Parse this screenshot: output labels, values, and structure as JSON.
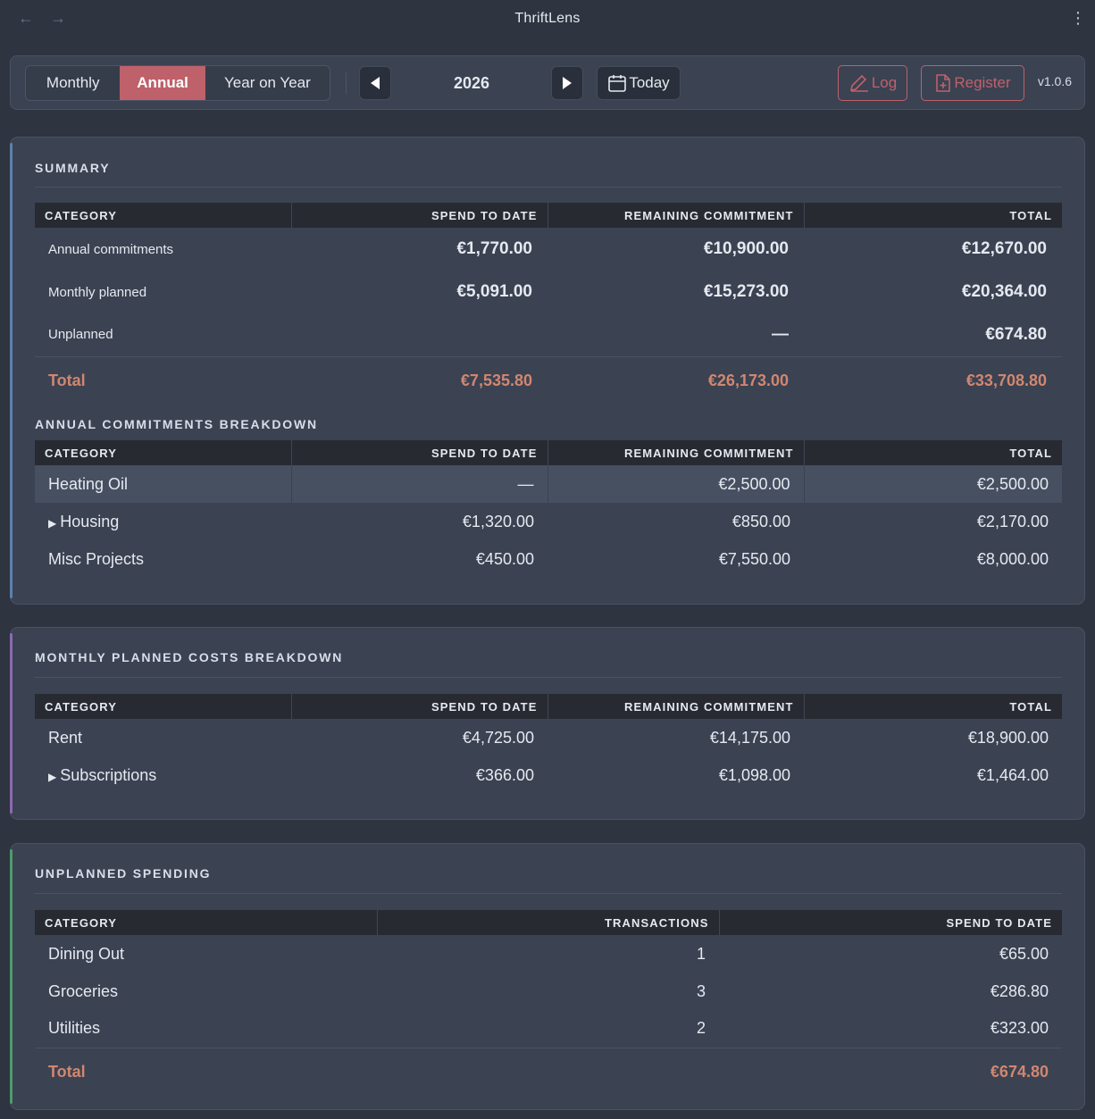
{
  "app": {
    "title": "ThriftLens",
    "version": "v1.0.6"
  },
  "toolbar": {
    "views": [
      "Monthly",
      "Annual",
      "Year on Year"
    ],
    "active_view": "Annual",
    "year": "2026",
    "today_label": "Today",
    "log_label": "Log",
    "register_label": "Register"
  },
  "summary": {
    "title": "SUMMARY",
    "headers": [
      "CATEGORY",
      "SPEND TO DATE",
      "REMAINING COMMITMENT",
      "TOTAL"
    ],
    "rows": [
      {
        "category": "Annual commitments",
        "spend": "€1,770.00",
        "remaining": "€10,900.00",
        "total": "€12,670.00"
      },
      {
        "category": "Monthly planned",
        "spend": "€5,091.00",
        "remaining": "€15,273.00",
        "total": "€20,364.00"
      },
      {
        "category": "Unplanned",
        "spend": "",
        "remaining": "—",
        "total": "€674.80"
      }
    ],
    "total": {
      "label": "Total",
      "spend": "€7,535.80",
      "remaining": "€26,173.00",
      "total": "€33,708.80"
    }
  },
  "annual_breakdown": {
    "title": "ANNUAL COMMITMENTS BREAKDOWN",
    "headers": [
      "CATEGORY",
      "SPEND TO DATE",
      "REMAINING COMMITMENT",
      "TOTAL"
    ],
    "rows": [
      {
        "category": "Heating Oil",
        "spend": "—",
        "remaining": "€2,500.00",
        "total": "€2,500.00"
      },
      {
        "category": "Housing",
        "spend": "€1,320.00",
        "remaining": "€850.00",
        "total": "€2,170.00"
      },
      {
        "category": "Misc Projects",
        "spend": "€450.00",
        "remaining": "€7,550.00",
        "total": "€8,000.00"
      }
    ]
  },
  "monthly_breakdown": {
    "title": "MONTHLY PLANNED COSTS BREAKDOWN",
    "headers": [
      "CATEGORY",
      "SPEND TO DATE",
      "REMAINING COMMITMENT",
      "TOTAL"
    ],
    "rows": [
      {
        "category": "Rent",
        "spend": "€4,725.00",
        "remaining": "€14,175.00",
        "total": "€18,900.00"
      },
      {
        "category": "Subscriptions",
        "spend": "€366.00",
        "remaining": "€1,098.00",
        "total": "€1,464.00"
      }
    ]
  },
  "unplanned": {
    "title": "UNPLANNED SPENDING",
    "headers": [
      "CATEGORY",
      "TRANSACTIONS",
      "SPEND TO DATE"
    ],
    "rows": [
      {
        "category": "Dining Out",
        "transactions": "1",
        "spend": "€65.00"
      },
      {
        "category": "Groceries",
        "transactions": "3",
        "spend": "€286.80"
      },
      {
        "category": "Utilities",
        "transactions": "2",
        "spend": "€323.00"
      }
    ],
    "total": {
      "label": "Total",
      "spend": "€674.80"
    }
  },
  "colors": {
    "accent": "#bf616a",
    "total": "#d08770",
    "summary_stripe": "#5e81ac",
    "monthly_stripe": "#8a6bb0",
    "unplanned_stripe": "#4e9a6e"
  },
  "icons": {
    "back": "arrow-left-icon",
    "forward": "arrow-right-icon",
    "menu": "kebab-menu-icon",
    "prev": "triangle-left-icon",
    "next": "triangle-right-icon",
    "today": "calendar-icon",
    "log": "pencil-icon",
    "register": "file-plus-icon",
    "expand": "triangle-right-icon"
  }
}
